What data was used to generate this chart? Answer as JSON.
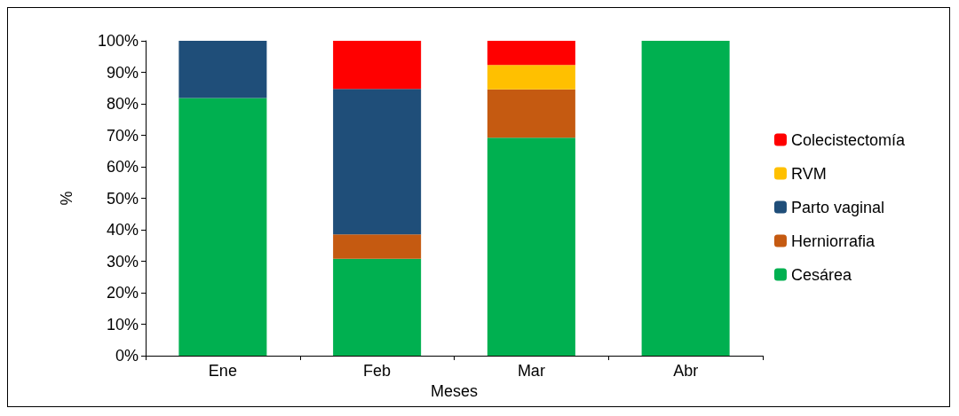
{
  "chart_data": {
    "type": "bar",
    "stacked": true,
    "xlabel": "Meses",
    "ylabel": "%",
    "categories": [
      "Ene",
      "Feb",
      "Mar",
      "Abr"
    ],
    "series": [
      {
        "name": "Cesárea",
        "color": "#00b050",
        "values": [
          81.8,
          30.8,
          69.2,
          100
        ]
      },
      {
        "name": "Herniorrafia",
        "color": "#c55a11",
        "values": [
          null,
          7.7,
          15.4,
          null
        ]
      },
      {
        "name": "Parto vaginal",
        "color": "#1f4e79",
        "values": [
          18.2,
          46.2,
          null,
          null
        ]
      },
      {
        "name": "RVM",
        "color": "#ffc000",
        "values": [
          null,
          null,
          7.7,
          null
        ]
      },
      {
        "name": "Colecistectomía",
        "color": "#ff0000",
        "values": [
          null,
          15.3,
          7.7,
          null
        ]
      }
    ],
    "ylim": [
      0,
      100
    ],
    "yticks": [
      {
        "value": 0,
        "label": "0%"
      },
      {
        "value": 10,
        "label": "10%"
      },
      {
        "value": 20,
        "label": "20%"
      },
      {
        "value": 30,
        "label": "30%"
      },
      {
        "value": 40,
        "label": "40%"
      },
      {
        "value": 50,
        "label": "50%"
      },
      {
        "value": 60,
        "label": "60%"
      },
      {
        "value": 70,
        "label": "70%"
      },
      {
        "value": 80,
        "label": "80%"
      },
      {
        "value": 90,
        "label": "90%"
      },
      {
        "value": 100,
        "label": "100%"
      }
    ],
    "grid": false,
    "legend": "right"
  }
}
